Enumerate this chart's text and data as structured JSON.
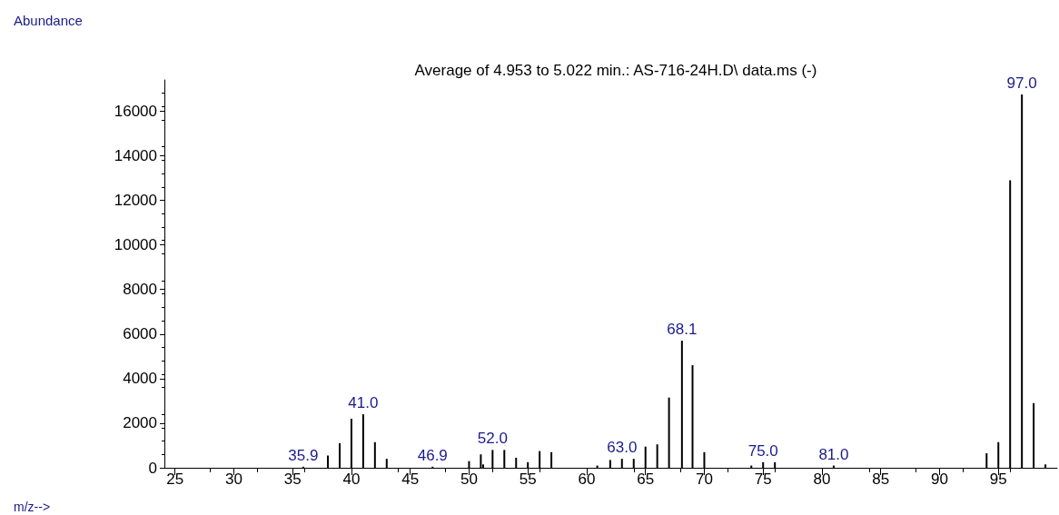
{
  "chart_data": {
    "type": "bar",
    "title": "Average of 4.953 to 5.022 min.: AS-716-24H.D\\ data.ms (-)",
    "ylabel": "Abundance",
    "x": [
      35.9,
      38,
      39,
      40,
      41,
      42,
      43,
      46.9,
      50,
      51,
      51.2,
      52,
      53,
      54,
      55,
      56,
      57,
      60.9,
      62,
      63,
      64,
      65,
      66,
      67,
      68.1,
      69,
      70,
      74,
      75,
      76,
      81,
      94,
      95,
      96,
      97,
      98,
      99
    ],
    "series": [
      {
        "color": "#000000",
        "values": [
          50,
          550,
          1100,
          2200,
          2400,
          1150,
          400,
          50,
          300,
          600,
          150,
          800,
          800,
          450,
          250,
          750,
          700,
          100,
          350,
          400,
          400,
          950,
          1050,
          3150,
          5700,
          4600,
          700,
          100,
          250,
          250,
          100,
          650,
          1150,
          12900,
          16750,
          2900,
          150
        ]
      }
    ],
    "annotations": [
      "m/z-->",
      {
        "text": "35.9",
        "x": 35.9,
        "y": 50
      },
      {
        "text": "41.0",
        "x": 41,
        "y": 2400
      },
      {
        "text": "46.9",
        "x": 46.9,
        "y": 50
      },
      {
        "text": "52.0",
        "x": 52,
        "y": 800
      },
      {
        "text": "63.0",
        "x": 63,
        "y": 400
      },
      {
        "text": "68.1",
        "x": 68.1,
        "y": 5700
      },
      {
        "text": "75.0",
        "x": 75,
        "y": 250
      },
      {
        "text": "81.0",
        "x": 81,
        "y": 100
      },
      {
        "text": "97.0",
        "x": 97,
        "y": 16750
      }
    ],
    "xlim": [
      24.1,
      100
    ],
    "xticks": [
      25,
      30,
      35,
      40,
      45,
      50,
      55,
      60,
      65,
      70,
      75,
      80,
      85,
      90,
      95
    ],
    "ylim": [
      0,
      17400
    ],
    "yticks": [
      0,
      2000,
      4000,
      6000,
      8000,
      10000,
      12000,
      14000,
      16000
    ],
    "grid": false
  }
}
